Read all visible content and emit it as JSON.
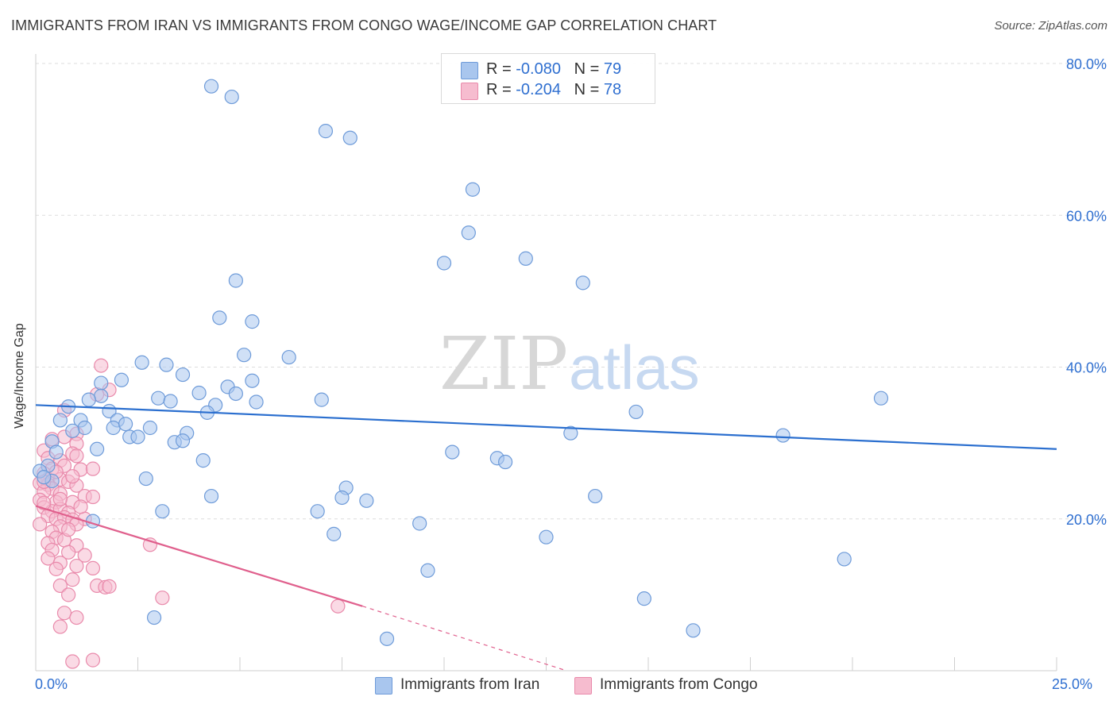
{
  "header": {
    "title": "IMMIGRANTS FROM IRAN VS IMMIGRANTS FROM CONGO WAGE/INCOME GAP CORRELATION CHART",
    "source": "Source: ZipAtlas.com"
  },
  "legend": {
    "rows": [
      {
        "r_label": "R = ",
        "r_value": "-0.080",
        "n_label": "N = ",
        "n_value": "79"
      },
      {
        "r_label": "R = ",
        "r_value": "-0.204",
        "n_label": "N = ",
        "n_value": "78"
      }
    ]
  },
  "watermark": {
    "zip": "ZIP",
    "atlas": "atlas"
  },
  "colors": {
    "iran_fill": "#a9c6ee",
    "iran_stroke": "#6e9bd9",
    "iran_line": "#2b6fcf",
    "congo_fill": "#f6bccf",
    "congo_stroke": "#e98aab",
    "congo_line": "#e0608d",
    "tick_text": "#2f6fd0",
    "grid": "#dddddd"
  },
  "chart_data": {
    "type": "scatter",
    "title": "IMMIGRANTS FROM IRAN VS IMMIGRANTS FROM CONGO WAGE/INCOME GAP CORRELATION CHART",
    "xlabel": "",
    "ylabel": "Wage/Income Gap",
    "xlim": [
      0,
      25
    ],
    "ylim": [
      0,
      80
    ],
    "x_tick_labels": [
      "0.0%",
      "25.0%"
    ],
    "y_ticks": [
      20,
      40,
      60,
      80
    ],
    "y_tick_labels": [
      "20.0%",
      "40.0%",
      "60.0%",
      "80.0%"
    ],
    "grid": "horizontal dashed",
    "legend_position": "top-center",
    "series": [
      {
        "name": "Immigrants from Iran",
        "R": -0.08,
        "N": 79,
        "trend": {
          "x0": 0,
          "y0": 35.0,
          "x1": 25,
          "y1": 29.2
        },
        "points": [
          [
            4.3,
            77.0
          ],
          [
            4.8,
            75.6
          ],
          [
            7.1,
            71.1
          ],
          [
            7.7,
            70.2
          ],
          [
            10.7,
            63.4
          ],
          [
            10.6,
            57.7
          ],
          [
            10.0,
            53.7
          ],
          [
            12.0,
            54.3
          ],
          [
            13.4,
            51.1
          ],
          [
            4.9,
            51.4
          ],
          [
            4.5,
            46.5
          ],
          [
            5.3,
            46.0
          ],
          [
            6.2,
            41.3
          ],
          [
            5.1,
            41.6
          ],
          [
            2.6,
            40.6
          ],
          [
            3.2,
            40.3
          ],
          [
            3.6,
            39.0
          ],
          [
            2.1,
            38.3
          ],
          [
            5.3,
            38.2
          ],
          [
            1.6,
            37.9
          ],
          [
            4.7,
            37.4
          ],
          [
            4.0,
            36.6
          ],
          [
            1.6,
            36.2
          ],
          [
            1.3,
            35.7
          ],
          [
            3.0,
            35.9
          ],
          [
            3.3,
            35.5
          ],
          [
            4.9,
            36.5
          ],
          [
            5.4,
            35.4
          ],
          [
            7.0,
            35.7
          ],
          [
            4.4,
            35.0
          ],
          [
            0.8,
            34.8
          ],
          [
            1.8,
            34.2
          ],
          [
            4.2,
            34.0
          ],
          [
            14.7,
            34.1
          ],
          [
            20.7,
            35.9
          ],
          [
            0.6,
            33.0
          ],
          [
            1.1,
            33.0
          ],
          [
            2.0,
            33.0
          ],
          [
            1.9,
            32.0
          ],
          [
            1.2,
            32.0
          ],
          [
            2.2,
            32.5
          ],
          [
            2.8,
            32.0
          ],
          [
            0.9,
            31.6
          ],
          [
            3.7,
            31.3
          ],
          [
            2.3,
            30.8
          ],
          [
            2.5,
            30.8
          ],
          [
            3.4,
            30.1
          ],
          [
            3.6,
            30.3
          ],
          [
            13.1,
            31.3
          ],
          [
            18.3,
            31.0
          ],
          [
            0.4,
            30.2
          ],
          [
            1.5,
            29.2
          ],
          [
            0.5,
            28.8
          ],
          [
            10.2,
            28.8
          ],
          [
            11.3,
            28.0
          ],
          [
            11.5,
            27.5
          ],
          [
            4.1,
            27.7
          ],
          [
            0.3,
            27.0
          ],
          [
            0.1,
            26.3
          ],
          [
            0.4,
            25.0
          ],
          [
            2.7,
            25.3
          ],
          [
            7.6,
            24.1
          ],
          [
            4.3,
            23.0
          ],
          [
            7.5,
            22.8
          ],
          [
            8.1,
            22.4
          ],
          [
            13.7,
            23.0
          ],
          [
            3.1,
            21.0
          ],
          [
            6.9,
            21.0
          ],
          [
            1.4,
            19.7
          ],
          [
            9.4,
            19.4
          ],
          [
            7.3,
            18.0
          ],
          [
            12.5,
            17.6
          ],
          [
            9.6,
            13.2
          ],
          [
            19.8,
            14.7
          ],
          [
            14.9,
            9.5
          ],
          [
            2.9,
            7.0
          ],
          [
            8.6,
            4.2
          ],
          [
            16.1,
            5.3
          ],
          [
            0.2,
            25.5
          ]
        ]
      },
      {
        "name": "Immigrants from Congo",
        "R": -0.204,
        "N": 78,
        "trend": {
          "x0": 0,
          "y0": 21.7,
          "x1": 8.0,
          "y1": 8.5,
          "dash_to_x": 13.0,
          "dash_to_y": 0
        },
        "points": [
          [
            1.6,
            40.2
          ],
          [
            1.8,
            37.0
          ],
          [
            1.5,
            36.4
          ],
          [
            0.7,
            34.3
          ],
          [
            0.4,
            30.5
          ],
          [
            1.0,
            31.2
          ],
          [
            1.0,
            29.9
          ],
          [
            0.7,
            30.8
          ],
          [
            0.2,
            29.0
          ],
          [
            0.9,
            28.6
          ],
          [
            0.3,
            28.0
          ],
          [
            1.0,
            28.3
          ],
          [
            0.6,
            27.7
          ],
          [
            0.7,
            27.0
          ],
          [
            1.1,
            26.5
          ],
          [
            1.4,
            26.6
          ],
          [
            0.4,
            26.6
          ],
          [
            0.2,
            26.0
          ],
          [
            0.3,
            25.2
          ],
          [
            0.6,
            25.2
          ],
          [
            0.8,
            24.9
          ],
          [
            0.1,
            24.7
          ],
          [
            0.3,
            24.5
          ],
          [
            0.4,
            24.0
          ],
          [
            1.0,
            24.4
          ],
          [
            0.2,
            23.6
          ],
          [
            0.6,
            23.3
          ],
          [
            1.2,
            23.0
          ],
          [
            1.4,
            22.9
          ],
          [
            0.1,
            22.5
          ],
          [
            0.5,
            22.2
          ],
          [
            0.9,
            22.2
          ],
          [
            0.2,
            21.5
          ],
          [
            0.4,
            21.0
          ],
          [
            0.6,
            21.3
          ],
          [
            0.8,
            20.8
          ],
          [
            0.3,
            20.4
          ],
          [
            0.5,
            20.0
          ],
          [
            0.7,
            20.2
          ],
          [
            0.9,
            19.9
          ],
          [
            1.2,
            20.0
          ],
          [
            0.1,
            19.3
          ],
          [
            0.6,
            19.0
          ],
          [
            1.0,
            19.3
          ],
          [
            0.4,
            18.3
          ],
          [
            0.5,
            17.5
          ],
          [
            0.3,
            16.8
          ],
          [
            0.7,
            17.2
          ],
          [
            1.0,
            16.5
          ],
          [
            0.4,
            15.9
          ],
          [
            0.8,
            15.6
          ],
          [
            1.2,
            15.2
          ],
          [
            2.8,
            16.6
          ],
          [
            0.3,
            14.8
          ],
          [
            0.6,
            14.2
          ],
          [
            1.0,
            13.8
          ],
          [
            0.5,
            13.4
          ],
          [
            1.4,
            13.5
          ],
          [
            0.9,
            12.0
          ],
          [
            0.6,
            11.2
          ],
          [
            1.5,
            11.2
          ],
          [
            1.7,
            11.0
          ],
          [
            1.8,
            11.1
          ],
          [
            0.8,
            10.0
          ],
          [
            3.1,
            9.6
          ],
          [
            0.7,
            7.6
          ],
          [
            1.0,
            7.0
          ],
          [
            0.6,
            5.8
          ],
          [
            7.4,
            8.5
          ],
          [
            0.9,
            1.2
          ],
          [
            1.4,
            1.4
          ],
          [
            0.2,
            24.9
          ],
          [
            0.5,
            26.2
          ],
          [
            1.1,
            21.6
          ],
          [
            0.8,
            18.6
          ],
          [
            0.2,
            22.1
          ],
          [
            0.6,
            22.6
          ],
          [
            0.9,
            25.6
          ]
        ]
      }
    ]
  }
}
